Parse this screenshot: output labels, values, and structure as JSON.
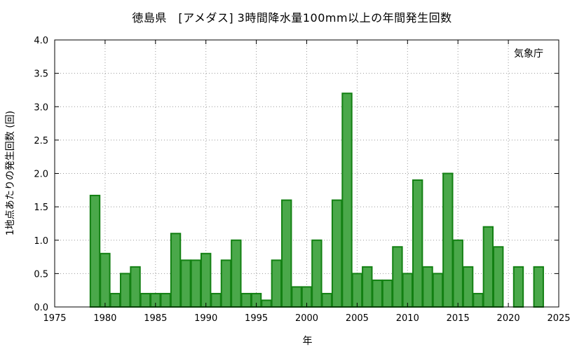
{
  "chart_data": {
    "type": "bar",
    "title": "徳島県　[アメダス] 3時間降水量100mm以上の年間発生回数",
    "xlabel": "年",
    "ylabel": "1地点あたりの発生回数 (回)",
    "source_label": "気象庁",
    "xlim": [
      1975,
      2025
    ],
    "ylim": [
      0.0,
      4.0
    ],
    "xticks": [
      1975,
      1980,
      1985,
      1990,
      1995,
      2000,
      2005,
      2010,
      2015,
      2020,
      2025
    ],
    "yticks": [
      "0.0",
      "0.5",
      "1.0",
      "1.5",
      "2.0",
      "2.5",
      "3.0",
      "3.5",
      "4.0"
    ],
    "grid": true,
    "bar_color": "#4aa84a",
    "bar_edge_color": "#138013",
    "x": [
      1979,
      1980,
      1981,
      1982,
      1983,
      1984,
      1985,
      1986,
      1987,
      1988,
      1989,
      1990,
      1991,
      1992,
      1993,
      1994,
      1995,
      1996,
      1997,
      1998,
      1999,
      2000,
      2001,
      2002,
      2003,
      2004,
      2005,
      2006,
      2007,
      2008,
      2009,
      2010,
      2011,
      2012,
      2013,
      2014,
      2015,
      2016,
      2017,
      2018,
      2019,
      2020,
      2021,
      2022,
      2023
    ],
    "values": [
      1.67,
      0.8,
      0.2,
      0.5,
      0.6,
      0.2,
      0.2,
      0.2,
      1.1,
      0.7,
      0.7,
      0.8,
      0.2,
      0.7,
      1.0,
      0.2,
      0.2,
      0.1,
      0.7,
      1.6,
      0.3,
      0.3,
      1.0,
      0.2,
      1.6,
      3.2,
      0.5,
      0.6,
      0.4,
      0.4,
      0.9,
      0.5,
      1.9,
      0.6,
      0.5,
      2.0,
      1.0,
      0.6,
      0.2,
      1.2,
      0.9,
      0.0,
      0.6,
      0.0,
      0.6
    ]
  }
}
